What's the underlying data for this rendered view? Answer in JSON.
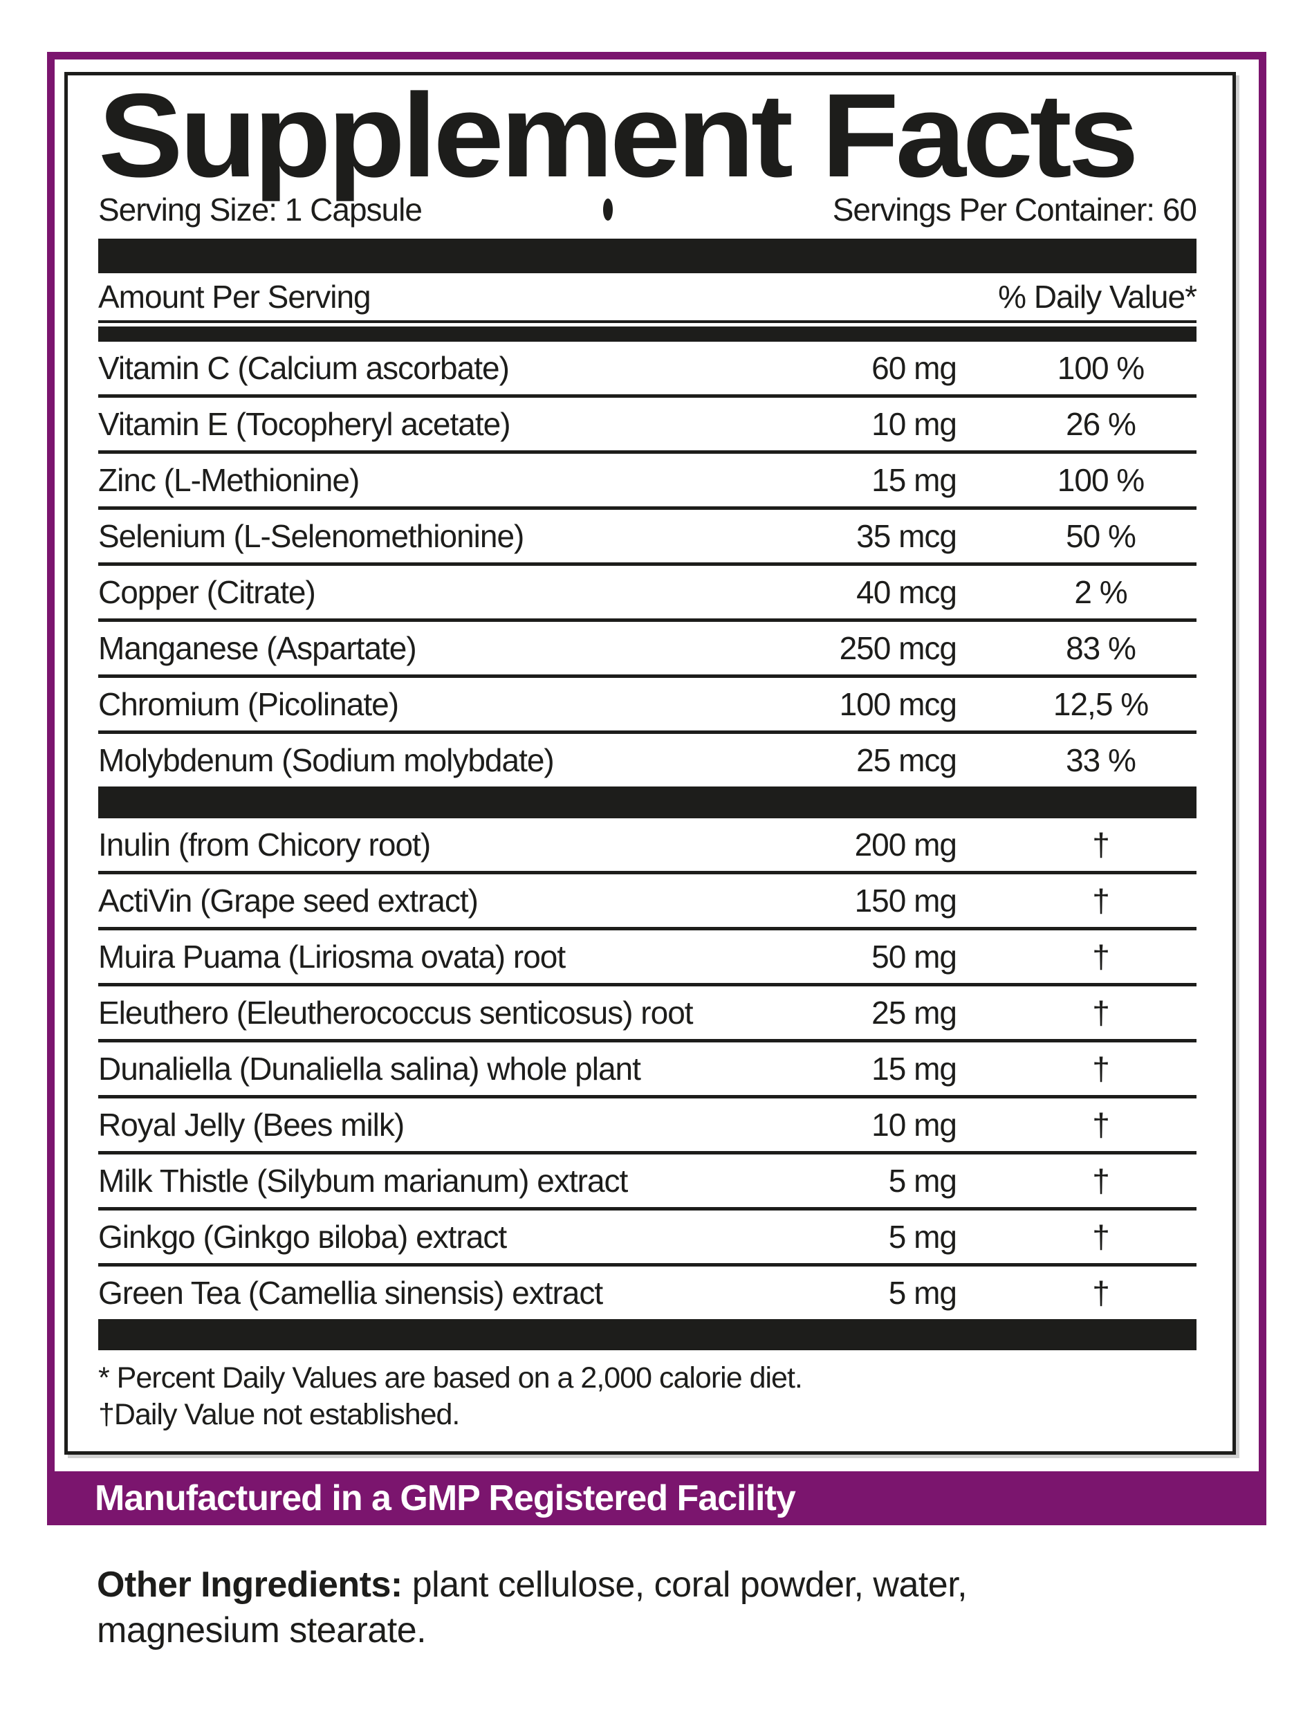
{
  "colors": {
    "purple": "#7B156E",
    "black": "#1d1d1b",
    "white": "#ffffff"
  },
  "label": {
    "title": "Supplement Facts",
    "serving_size": "Serving Size: 1 Capsule",
    "servings_per_container": "Servings Per Container: 60",
    "header": {
      "amount_per_serving": "Amount Per Serving",
      "daily_value": "% Daily Value*"
    },
    "minerals": [
      {
        "name": "Vitamin C (Calcium ascorbate)",
        "amount": "60 mg",
        "dv": "100 %"
      },
      {
        "name": "Vitamin E (Tocopheryl acetate)",
        "amount": "10 mg",
        "dv": "26 %"
      },
      {
        "name": "Zinc (L-Methionine)",
        "amount": "15 mg",
        "dv": "100 %"
      },
      {
        "name": "Selenium (L-Selenomethionine)",
        "amount": "35 mcg",
        "dv": "50 %"
      },
      {
        "name": "Copper (Citrate)",
        "amount": "40 mcg",
        "dv": "2 %"
      },
      {
        "name": "Manganese (Aspartate)",
        "amount": "250 mcg",
        "dv": "83 %"
      },
      {
        "name": "Chromium (Picolinate)",
        "amount": "100 mcg",
        "dv": "12,5 %"
      },
      {
        "name": "Molybdenum (Sodium molybdate)",
        "amount": "25 mcg",
        "dv": "33 %"
      }
    ],
    "botanicals": [
      {
        "name": "Inulin (from Chicory root)",
        "amount": "200 mg",
        "dv": "†"
      },
      {
        "name": "ActiVin (Grape seed extract)",
        "amount": "150 mg",
        "dv": "†"
      },
      {
        "name": "Muira Puama (Liriosma ovata) root",
        "amount": "50 mg",
        "dv": "†"
      },
      {
        "name": "Eleuthero (Eleutherococcus senticosus) root",
        "amount": "25 mg",
        "dv": "†"
      },
      {
        "name": "Dunaliella (Dunaliella salina) whole plant",
        "amount": "15 mg",
        "dv": "†"
      },
      {
        "name": "Royal Jelly (Bees milk)",
        "amount": "10 mg",
        "dv": "†"
      },
      {
        "name": "Milk Thistle (Silybum marianum) extract",
        "amount": "5 mg",
        "dv": "†"
      },
      {
        "name": "Ginkgo (Ginkgo вiloba) extract",
        "amount": "5 mg",
        "dv": "†"
      },
      {
        "name": "Green Tea (Camellia sinensis) extract",
        "amount": "5 mg",
        "dv": "†"
      }
    ],
    "footnotes": {
      "asterisk": "* Percent Daily Values are based on a 2,000 calorie diet.",
      "dagger": "†Daily Value not established."
    },
    "gmp_banner": "Manufactured in a GMP Registered Facility",
    "other_ingredients": {
      "label": "Other Ingredients:",
      "text": "plant cellulose, coral powder, water, magnesium stearate."
    }
  }
}
